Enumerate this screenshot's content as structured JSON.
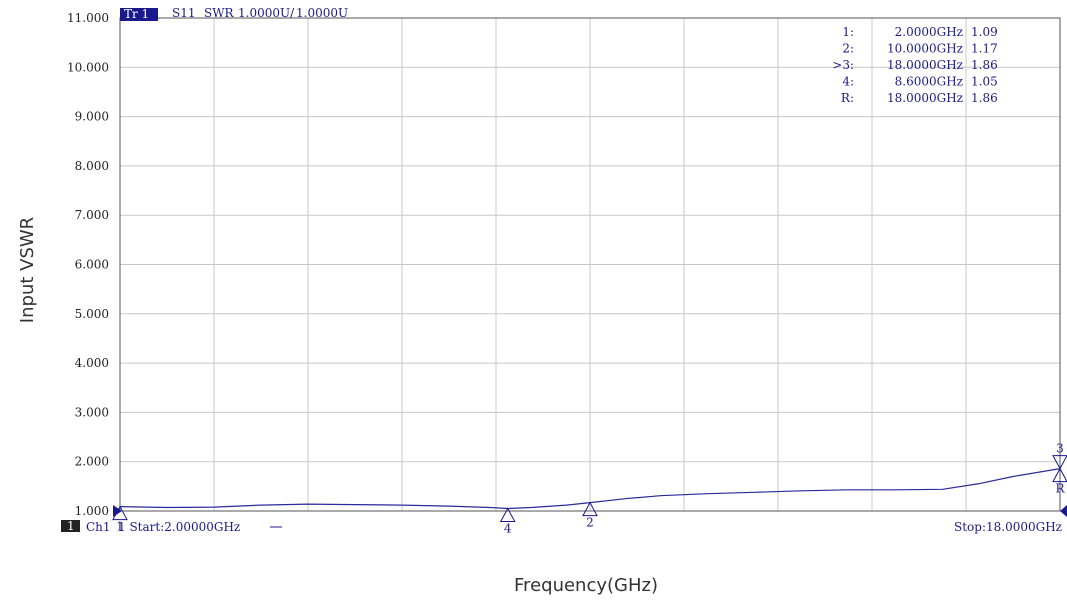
{
  "chart_data": {
    "type": "line",
    "trace_header": {
      "trace_label": "Tr 1",
      "parameter": "S11",
      "format": "SWR",
      "scale": "1.0000U/",
      "reference": "1.0000U"
    },
    "xlabel": "Frequency(GHz)",
    "ylabel": "Input VSWR",
    "xlim": [
      2,
      18
    ],
    "ylim": [
      1,
      11
    ],
    "yticks": [
      11,
      10,
      9,
      8,
      7,
      6,
      5,
      4,
      3,
      2,
      1
    ],
    "ytick_labels": [
      "11.000",
      "10.000",
      "9.000",
      "8.000",
      "7.000",
      "6.000",
      "5.000",
      "4.000",
      "3.000",
      "2.000",
      "1.000"
    ],
    "grid": true,
    "series": [
      {
        "color": "#2a2a9a",
        "x": [
          2.0,
          2.8,
          3.6,
          4.4,
          5.2,
          6.0,
          6.8,
          7.6,
          8.3,
          8.6,
          9.0,
          9.6,
          10.0,
          10.6,
          11.2,
          12.0,
          12.8,
          13.6,
          14.4,
          15.2,
          16.0,
          16.6,
          17.2,
          18.0
        ],
        "y": [
          1.09,
          1.07,
          1.08,
          1.12,
          1.14,
          1.13,
          1.12,
          1.1,
          1.07,
          1.05,
          1.07,
          1.12,
          1.17,
          1.25,
          1.31,
          1.35,
          1.38,
          1.41,
          1.43,
          1.43,
          1.44,
          1.55,
          1.7,
          1.86
        ]
      }
    ],
    "markers": [
      {
        "id": "1",
        "x": 2.0,
        "y": 1.09,
        "freq_text": "2.0000GHz",
        "value_text": "1.09",
        "label_text": "1:"
      },
      {
        "id": "2",
        "x": 10.0,
        "y": 1.17,
        "freq_text": "10.0000GHz",
        "value_text": "1.17",
        "label_text": "2:"
      },
      {
        "id": "3",
        "x": 18.0,
        "y": 1.86,
        "freq_text": "18.0000GHz",
        "value_text": "1.86",
        "label_text": ">3:"
      },
      {
        "id": "4",
        "x": 8.6,
        "y": 1.05,
        "freq_text": "8.6000GHz",
        "value_text": "1.05",
        "label_text": "4:"
      },
      {
        "id": "R",
        "x": 18.0,
        "y": 1.86,
        "freq_text": "18.0000GHz",
        "value_text": "1.86",
        "label_text": "R:"
      }
    ],
    "footer": {
      "channel_badge": "1",
      "channel_text": "Ch1",
      "start_text": "1 Start:2.00000GHz",
      "stop_text": "Stop:18.0000GHz"
    }
  }
}
